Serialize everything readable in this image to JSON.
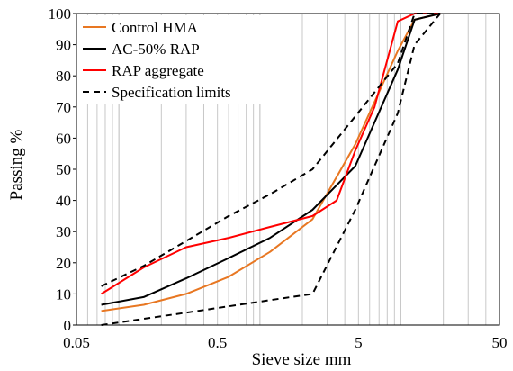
{
  "chart_data": {
    "type": "line",
    "xlabel": "Sieve size mm",
    "ylabel": "Passing %",
    "x_scale": "log",
    "xlim": [
      0.05,
      50
    ],
    "ylim": [
      0,
      100
    ],
    "x_ticks": [
      "0.05",
      "0.5",
      "5",
      "50"
    ],
    "y_ticks": [
      "0",
      "10",
      "20",
      "30",
      "40",
      "50",
      "60",
      "70",
      "80",
      "90",
      "100"
    ],
    "grid": "vertical minor log grid",
    "legend_position": "top-left",
    "series": [
      {
        "name": "Control HMA",
        "color": "#E87722",
        "style": "solid",
        "points": [
          [
            0.075,
            4.5
          ],
          [
            0.15,
            6.5
          ],
          [
            0.3,
            10
          ],
          [
            0.6,
            15.5
          ],
          [
            1.18,
            23.5
          ],
          [
            2.36,
            34
          ],
          [
            4.75,
            58
          ],
          [
            9.5,
            88
          ],
          [
            12.5,
            98
          ],
          [
            19,
            100
          ]
        ]
      },
      {
        "name": "AC-50% RAP",
        "color": "#000000",
        "style": "solid",
        "points": [
          [
            0.075,
            6.5
          ],
          [
            0.15,
            9
          ],
          [
            0.3,
            15
          ],
          [
            0.6,
            21.5
          ],
          [
            1.18,
            28
          ],
          [
            2.36,
            37
          ],
          [
            4.75,
            51
          ],
          [
            9.5,
            82
          ],
          [
            12.5,
            98
          ],
          [
            19,
            100
          ]
        ]
      },
      {
        "name": "RAP aggregate",
        "color": "#FF0000",
        "style": "solid",
        "points": [
          [
            0.075,
            10
          ],
          [
            0.15,
            18.5
          ],
          [
            0.3,
            25
          ],
          [
            0.6,
            28
          ],
          [
            1.18,
            31.5
          ],
          [
            2.36,
            35
          ],
          [
            3.5,
            40
          ],
          [
            4.75,
            56
          ],
          [
            6.5,
            70
          ],
          [
            9.5,
            97.5
          ],
          [
            12.5,
            100
          ],
          [
            19,
            100
          ]
        ]
      },
      {
        "name": "Specification limits",
        "color": "#000000",
        "style": "dashed",
        "points": [
          [
            0.075,
            12.5
          ],
          [
            0.15,
            19
          ],
          [
            0.3,
            27
          ],
          [
            0.6,
            35
          ],
          [
            1.18,
            42
          ],
          [
            2.36,
            50
          ],
          [
            4.75,
            67
          ],
          [
            9.5,
            84
          ],
          [
            12.5,
            100
          ],
          [
            19,
            100
          ]
        ]
      },
      {
        "name": "Specification limits",
        "color": "#000000",
        "style": "dashed",
        "points": [
          [
            0.075,
            0
          ],
          [
            0.15,
            2
          ],
          [
            0.3,
            4
          ],
          [
            0.6,
            6
          ],
          [
            1.18,
            8
          ],
          [
            2.36,
            10
          ],
          [
            4.75,
            37
          ],
          [
            9.5,
            68
          ],
          [
            12.5,
            90
          ],
          [
            19,
            100
          ]
        ]
      }
    ]
  }
}
